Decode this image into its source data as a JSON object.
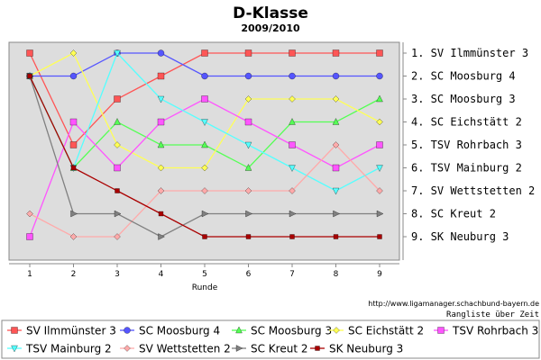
{
  "chart_data": {
    "type": "line",
    "title": "D-Klasse",
    "subtitle": "2009/2010",
    "xlabel": "Runde",
    "ylabel": "",
    "x": [
      1,
      2,
      3,
      4,
      5,
      6,
      7,
      8,
      9
    ],
    "xlim": [
      0.5,
      9.5
    ],
    "ylim": [
      0.5,
      9.5
    ],
    "y_inverted": true,
    "grid": false,
    "legend_position": "bottom",
    "right_axis_labels": [
      "1. SV Ilmmünster 3",
      "2. SC Moosburg 4",
      "3. SC Moosburg 3",
      "4. SC Eichstätt 2",
      "5. TSV Rohrbach 3",
      "6. TSV Mainburg 2",
      "7. SV Wettstetten 2",
      "8. SC Kreut 2",
      "9. SK Neuburg 3"
    ],
    "annotation_url": "http://www.ligamanager.schachbund-bayern.de",
    "annotation_caption": "Rangliste über Zeit",
    "series": [
      {
        "name": "SV Ilmmünster 3",
        "color": "#ff5555",
        "marker": "square",
        "values": [
          1,
          5,
          3,
          2,
          1,
          1,
          1,
          1,
          1
        ]
      },
      {
        "name": "SC Moosburg 4",
        "color": "#5555ff",
        "marker": "circle",
        "values": [
          2,
          2,
          1,
          1,
          2,
          2,
          2,
          2,
          2
        ]
      },
      {
        "name": "SC Moosburg 3",
        "color": "#55ff55",
        "marker": "triangle-up",
        "values": [
          2,
          6,
          4,
          5,
          5,
          6,
          4,
          4,
          3
        ]
      },
      {
        "name": "SC Eichstätt 2",
        "color": "#ffff55",
        "marker": "diamond",
        "values": [
          2,
          1,
          5,
          6,
          6,
          3,
          3,
          3,
          4
        ]
      },
      {
        "name": "TSV Rohrbach 3",
        "color": "#ff55ff",
        "marker": "square",
        "values": [
          9,
          4,
          6,
          4,
          3,
          4,
          5,
          6,
          5
        ]
      },
      {
        "name": "TSV Mainburg 2",
        "color": "#55ffff",
        "marker": "triangle-down",
        "values": [
          2,
          6,
          1,
          3,
          4,
          5,
          6,
          7,
          6
        ]
      },
      {
        "name": "SV Wettstetten 2",
        "color": "#ffaaaa",
        "marker": "diamond",
        "values": [
          8,
          9,
          9,
          7,
          7,
          7,
          7,
          5,
          7
        ]
      },
      {
        "name": "SC Kreut 2",
        "color": "#808080",
        "marker": "triangle-right",
        "values": [
          2,
          8,
          8,
          9,
          8,
          8,
          8,
          8,
          8
        ]
      },
      {
        "name": "SK Neuburg 3",
        "color": "#aa0000",
        "marker": "square-small",
        "values": [
          2,
          6,
          7,
          8,
          9,
          9,
          9,
          9,
          9
        ]
      }
    ]
  }
}
